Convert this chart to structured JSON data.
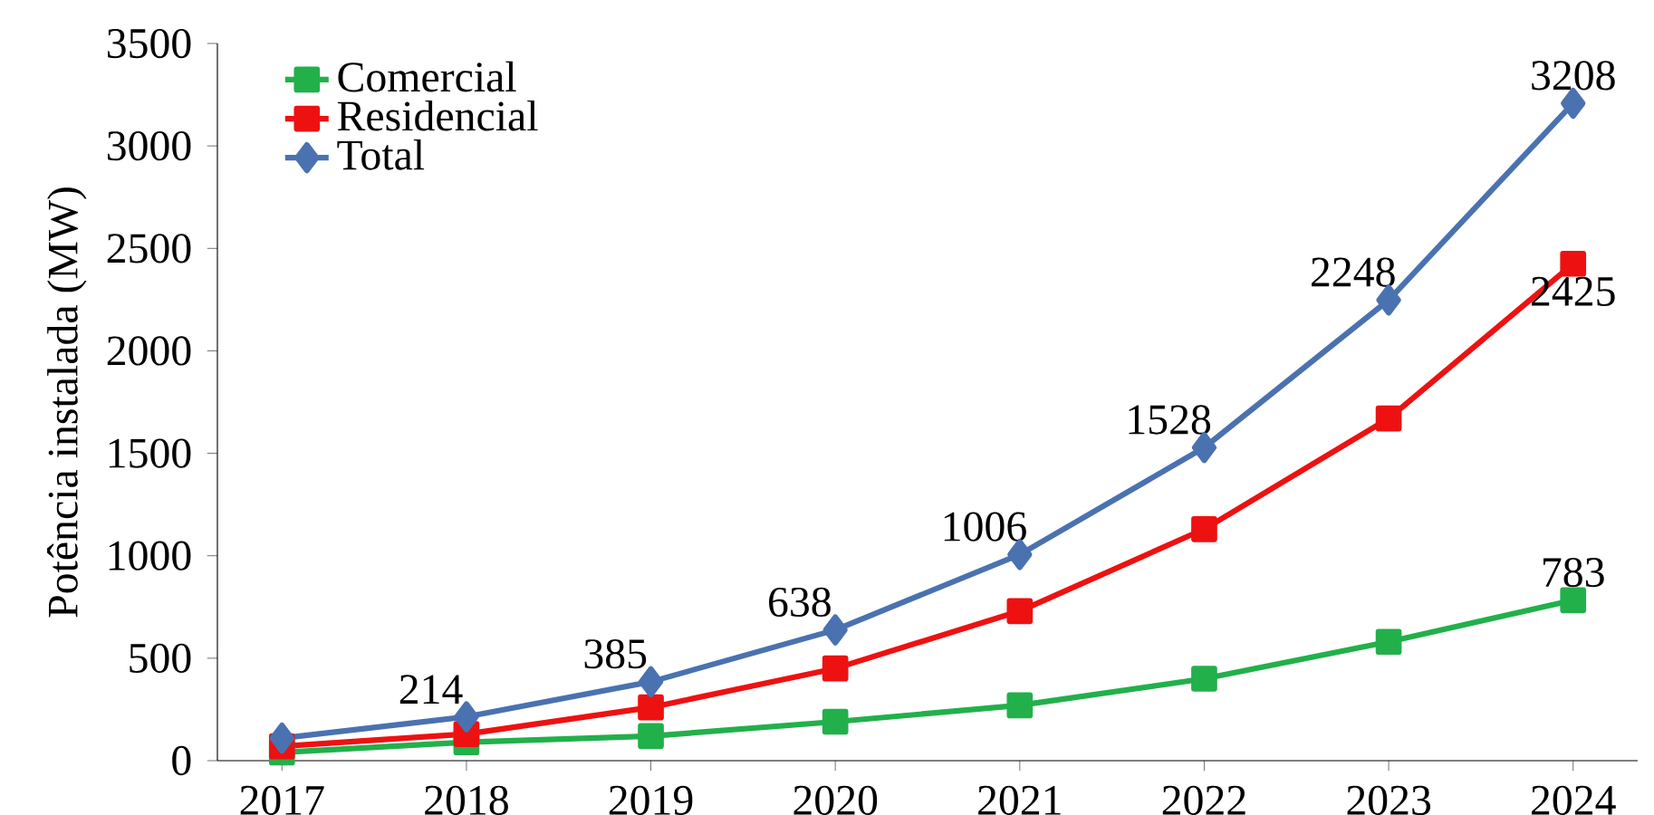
{
  "chart_data": {
    "type": "line",
    "ylabel": "Potência instalada (MW)",
    "categories": [
      "2017",
      "2018",
      "2019",
      "2020",
      "2021",
      "2022",
      "2023",
      "2024"
    ],
    "series": [
      {
        "name": "Comercial",
        "color": "#22b04b",
        "marker": "square",
        "values": [
          40,
          90,
          120,
          190,
          270,
          400,
          580,
          783
        ],
        "value_labels": [
          null,
          null,
          null,
          null,
          null,
          null,
          null,
          "783"
        ]
      },
      {
        "name": "Residencial",
        "color": "#ee1111",
        "marker": "square",
        "values": [
          70,
          130,
          260,
          450,
          730,
          1130,
          1670,
          2425
        ],
        "value_labels": [
          null,
          null,
          null,
          null,
          null,
          null,
          null,
          "2425"
        ]
      },
      {
        "name": "Total",
        "color": "#4a72b0",
        "marker": "diamond",
        "values": [
          110,
          214,
          385,
          638,
          1006,
          1528,
          2248,
          3208
        ],
        "value_labels": [
          null,
          "214",
          "385",
          "638",
          "1006",
          "1528",
          "2248",
          "3208"
        ]
      }
    ],
    "ylim": [
      0,
      3500
    ],
    "yticks": [
      0,
      500,
      1000,
      1500,
      2000,
      2500,
      3000,
      3500
    ],
    "legend": "top left",
    "grid": false
  }
}
